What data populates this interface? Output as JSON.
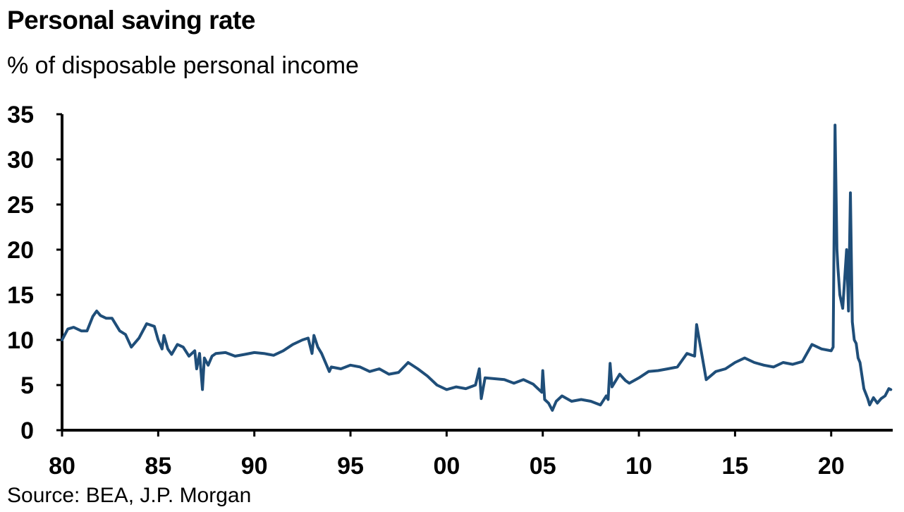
{
  "title": "Personal saving rate",
  "subtitle": "% of disposable personal income",
  "source": "Source: BEA, J.P. Morgan",
  "colors": {
    "line": "#1f4e79",
    "axis": "#000000",
    "background": "#ffffff"
  },
  "chart_data": {
    "type": "line",
    "title": "Personal saving rate",
    "subtitle": "% of disposable personal income",
    "xlabel": "",
    "ylabel": "",
    "grid": false,
    "legend": "none",
    "ylim": [
      0,
      35
    ],
    "xlim": [
      1980,
      2023.2
    ],
    "y_ticks": [
      0,
      5,
      10,
      15,
      20,
      25,
      30,
      35
    ],
    "y_tick_labels": [
      "0",
      "5",
      "10",
      "15",
      "20",
      "25",
      "30",
      "35"
    ],
    "x_ticks": [
      1980,
      1985,
      1990,
      1995,
      2000,
      2005,
      2010,
      2015,
      2020
    ],
    "x_tick_labels": [
      "80",
      "85",
      "90",
      "95",
      "00",
      "05",
      "10",
      "15",
      "20"
    ],
    "series": [
      {
        "x": [
          1980.0,
          1980.3,
          1980.6,
          1981.0,
          1981.3,
          1981.6,
          1981.8,
          1982.0,
          1982.3,
          1982.6,
          1983.0,
          1983.3,
          1983.6,
          1984.0,
          1984.4,
          1984.8,
          1985.0,
          1985.2,
          1985.3,
          1985.5,
          1985.7,
          1986.0,
          1986.3,
          1986.6,
          1986.9,
          1987.0,
          1987.15,
          1987.3,
          1987.4,
          1987.6,
          1987.8,
          1988.0,
          1988.5,
          1989.0,
          1989.5,
          1990.0,
          1990.5,
          1991.0,
          1991.5,
          1992.0,
          1992.5,
          1992.8,
          1993.0,
          1993.1,
          1993.3,
          1993.5,
          1993.9,
          1994.0,
          1994.5,
          1995.0,
          1995.5,
          1996.0,
          1996.5,
          1997.0,
          1997.5,
          1998.0,
          1998.5,
          1999.0,
          1999.5,
          2000.0,
          2000.5,
          2001.0,
          2001.5,
          2001.7,
          2001.8,
          2002.0,
          2002.5,
          2003.0,
          2003.5,
          2004.0,
          2004.5,
          2004.95,
          2005.0,
          2005.1,
          2005.3,
          2005.5,
          2005.7,
          2006.0,
          2006.5,
          2007.0,
          2007.5,
          2008.0,
          2008.3,
          2008.4,
          2008.5,
          2008.6,
          2009.0,
          2009.3,
          2009.5,
          2010.0,
          2010.5,
          2011.0,
          2011.5,
          2012.0,
          2012.5,
          2012.9,
          2013.0,
          2013.5,
          2014.0,
          2014.5,
          2015.0,
          2015.5,
          2016.0,
          2016.5,
          2017.0,
          2017.5,
          2018.0,
          2018.5,
          2019.0,
          2019.5,
          2020.0,
          2020.1,
          2020.2,
          2020.3,
          2020.35,
          2020.45,
          2020.6,
          2020.8,
          2020.9,
          2021.0,
          2021.1,
          2021.2,
          2021.3,
          2021.4,
          2021.5,
          2021.7,
          2021.9,
          2022.0,
          2022.2,
          2022.4,
          2022.6,
          2022.8,
          2023.0,
          2023.1
        ],
        "values": [
          10.0,
          11.2,
          11.4,
          11.0,
          11.0,
          12.6,
          13.2,
          12.7,
          12.4,
          12.4,
          11.0,
          10.6,
          9.2,
          10.2,
          11.8,
          11.5,
          10.0,
          9.0,
          10.5,
          9.0,
          8.4,
          9.5,
          9.2,
          8.2,
          8.8,
          6.8,
          8.5,
          4.5,
          8.0,
          7.2,
          8.2,
          8.5,
          8.6,
          8.2,
          8.4,
          8.6,
          8.5,
          8.3,
          8.8,
          9.5,
          10.0,
          10.2,
          8.5,
          10.5,
          9.2,
          8.5,
          6.5,
          7.0,
          6.8,
          7.2,
          7.0,
          6.5,
          6.8,
          6.2,
          6.4,
          7.5,
          6.8,
          6.0,
          5.0,
          4.5,
          4.8,
          4.6,
          5.0,
          6.8,
          3.5,
          5.8,
          5.7,
          5.6,
          5.2,
          5.6,
          5.1,
          4.2,
          6.6,
          3.4,
          3.0,
          2.2,
          3.2,
          3.8,
          3.2,
          3.4,
          3.2,
          2.8,
          3.8,
          3.4,
          7.4,
          4.8,
          6.2,
          5.5,
          5.2,
          5.8,
          6.5,
          6.6,
          6.8,
          7.0,
          8.5,
          8.2,
          11.7,
          5.6,
          6.5,
          6.8,
          7.5,
          8.0,
          7.5,
          7.2,
          7.0,
          7.5,
          7.3,
          7.6,
          9.5,
          9.0,
          8.8,
          9.2,
          33.8,
          20.0,
          18.0,
          15.0,
          13.5,
          20.0,
          13.2,
          26.3,
          12.0,
          10.0,
          9.6,
          8.0,
          7.5,
          4.6,
          3.5,
          2.8,
          3.6,
          3.0,
          3.5,
          3.8,
          4.6,
          4.5
        ]
      }
    ]
  }
}
